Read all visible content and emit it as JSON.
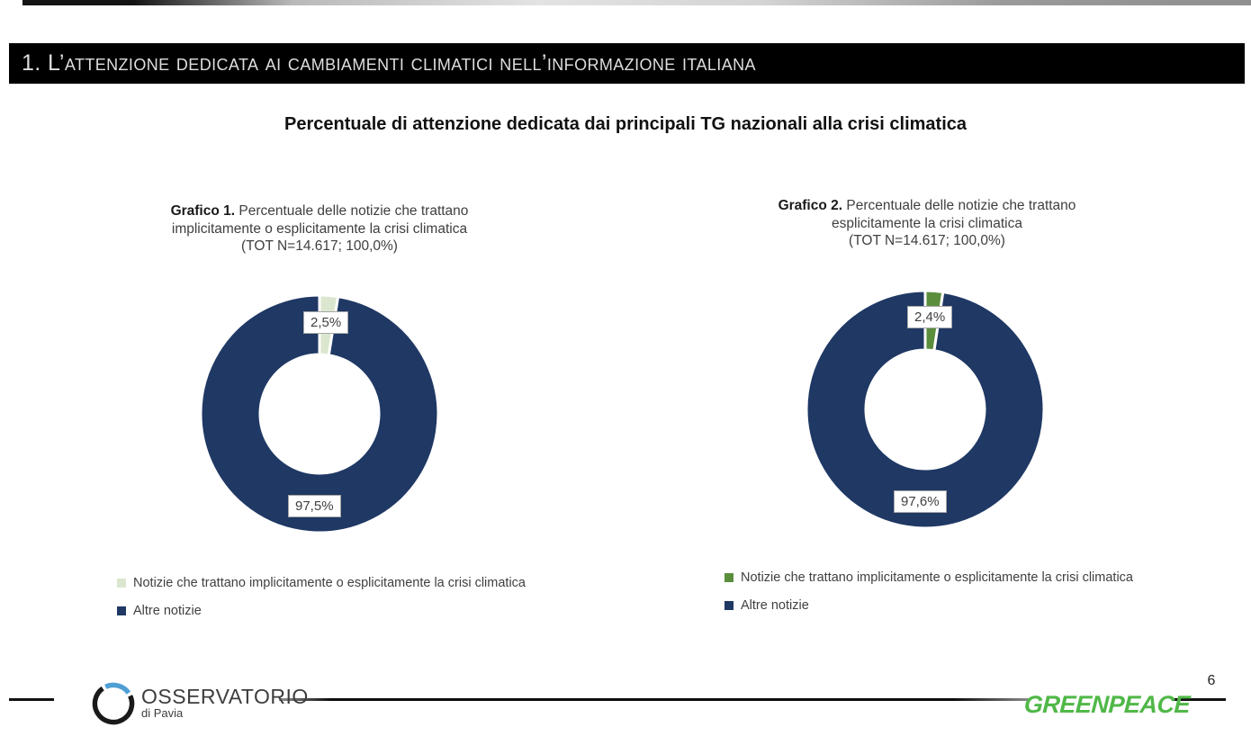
{
  "header": {
    "section_title": "1. L’attenzione dedicata ai cambiamenti climatici nell’informazione italiana"
  },
  "main_title": "Percentuale di attenzione dedicata dai principali TG nazionali alla crisi climatica",
  "chart_data": [
    {
      "type": "pie",
      "subtype": "donut",
      "caption": {
        "bold": "Grafico 1.",
        "line1_rest": " Percentuale delle notizie che trattano",
        "line2": "implicitamente o esplicitamente la crisi climatica",
        "line3": "(TOT N=14.617; 100,0%)"
      },
      "total_note": "TOT N=14.617; 100,0%",
      "slices": [
        {
          "label": "Notizie che trattano implicitamente o esplicitamente la crisi climatica",
          "value": 2.5,
          "display": "2,5%",
          "color": "#DBE6CE"
        },
        {
          "label": "Altre notizie",
          "value": 97.5,
          "display": "97,5%",
          "color": "#1F3864"
        }
      ],
      "legend_position": "bottom-left"
    },
    {
      "type": "pie",
      "subtype": "donut",
      "caption": {
        "bold": "Grafico 2.",
        "line1_rest": " Percentuale delle notizie che trattano",
        "line2": "esplicitamente la crisi climatica",
        "line3": "(TOT N=14.617; 100,0%)"
      },
      "total_note": "TOT N=14.617; 100,0%",
      "slices": [
        {
          "label": "Notizie che trattano implicitamente o esplicitamente la crisi climatica",
          "value": 2.4,
          "display": "2,4%",
          "color": "#5A8E3D"
        },
        {
          "label": "Altre notizie",
          "value": 97.6,
          "display": "97,6%",
          "color": "#1F3864"
        }
      ],
      "legend_position": "bottom-left"
    }
  ],
  "footer": {
    "osservatorio_name": "OSSERVATORIO",
    "osservatorio_sub": "di Pavia",
    "greenpeace_wordmark": "GREENPEACE",
    "page_number": "6"
  },
  "colors": {
    "navy": "#1F3864",
    "pale_green": "#DBE6CE",
    "medium_green": "#5A8E3D",
    "greenpeace_green": "#50B848",
    "osservatorio_blue": "#4E9FD4",
    "header_bar": "#000000"
  }
}
